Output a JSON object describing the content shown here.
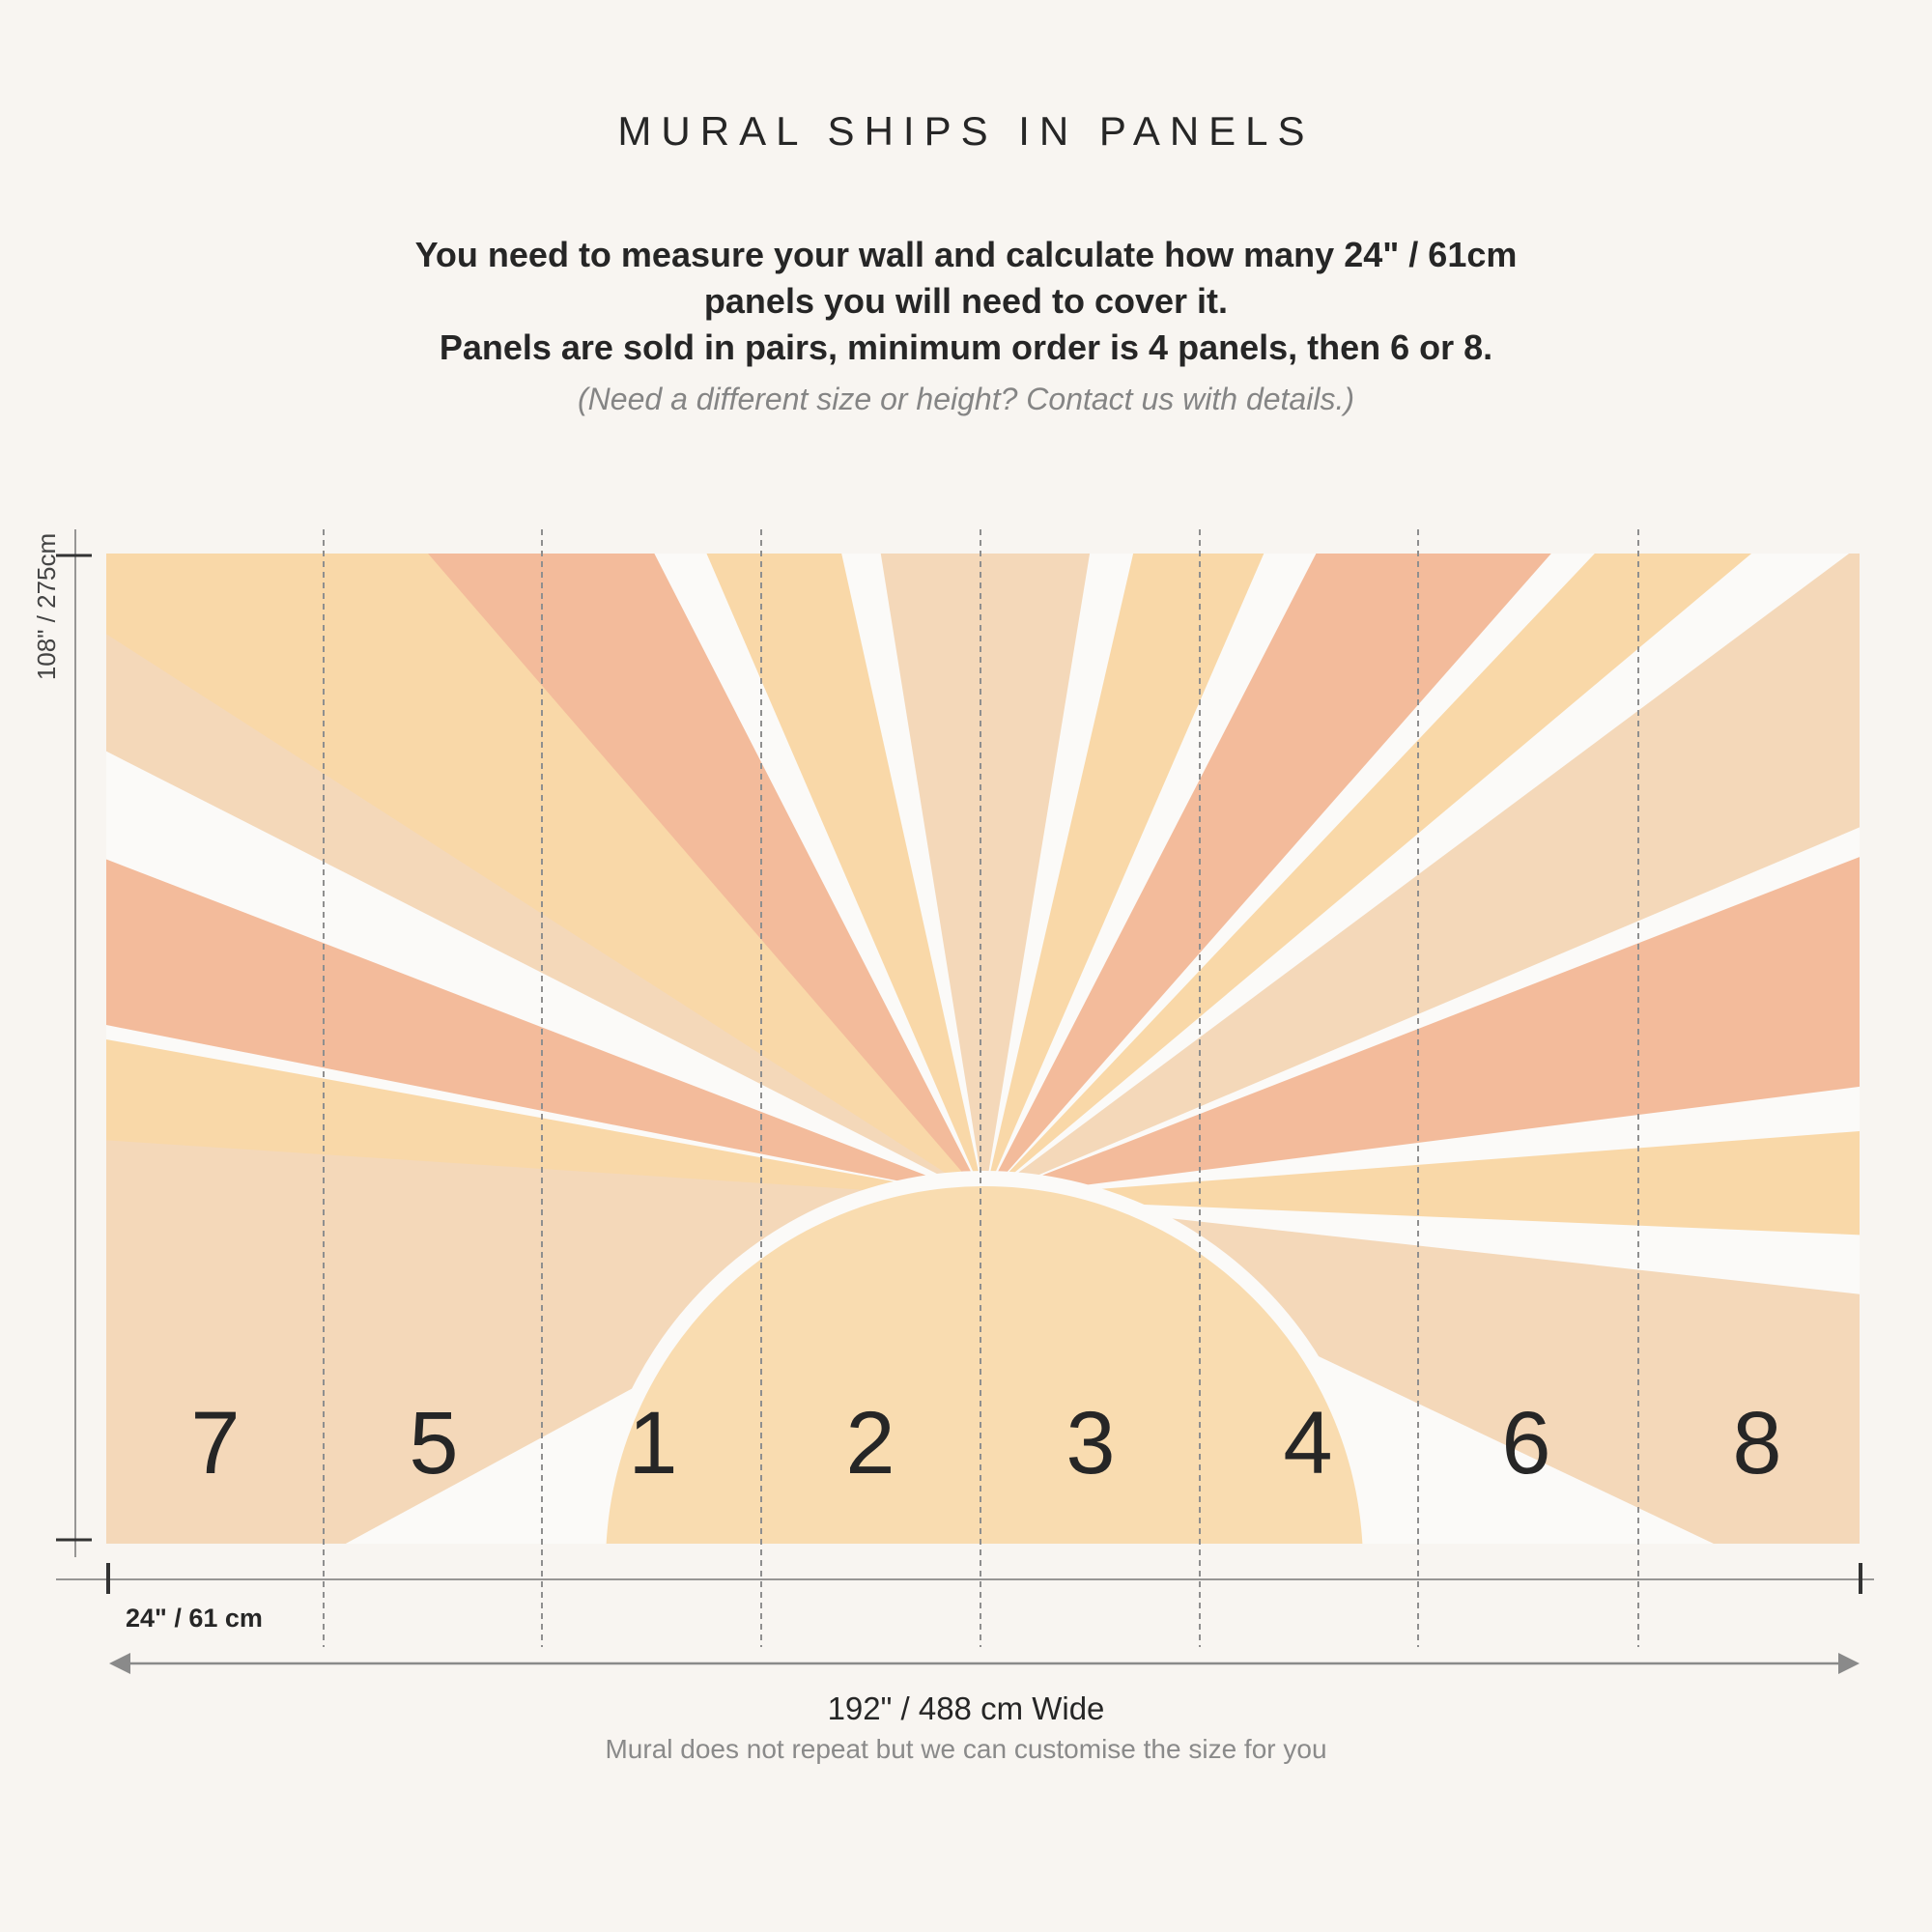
{
  "title": "MURAL SHIPS IN PANELS",
  "instructions": [
    "You need to measure your wall and calculate how many 24\" / 61cm",
    "panels you will need to cover it.",
    "Panels are sold in pairs, minimum order is 4 panels, then 6 or 8."
  ],
  "contact_note": "(Need a different size or height? Contact us with details.)",
  "height_label": "108\" / 275cm",
  "panel_width_label": "24\" / 61 cm",
  "total_width_label": "192\" / 488 cm Wide",
  "repeat_note": "Mural does not repeat but we can customise the size for you",
  "panels": [
    "7",
    "5",
    "1",
    "2",
    "3",
    "4",
    "6",
    "8"
  ],
  "colors": {
    "background": "#f8f5f1",
    "ray_gap": "#fbfaf8",
    "peach": "#f5c6a8",
    "orange_peach": "#f3bb9b",
    "yellow": "#f9d8a8",
    "light_beige": "#f4d8b9",
    "sun": "#f9dcb0",
    "text": "#262626"
  }
}
